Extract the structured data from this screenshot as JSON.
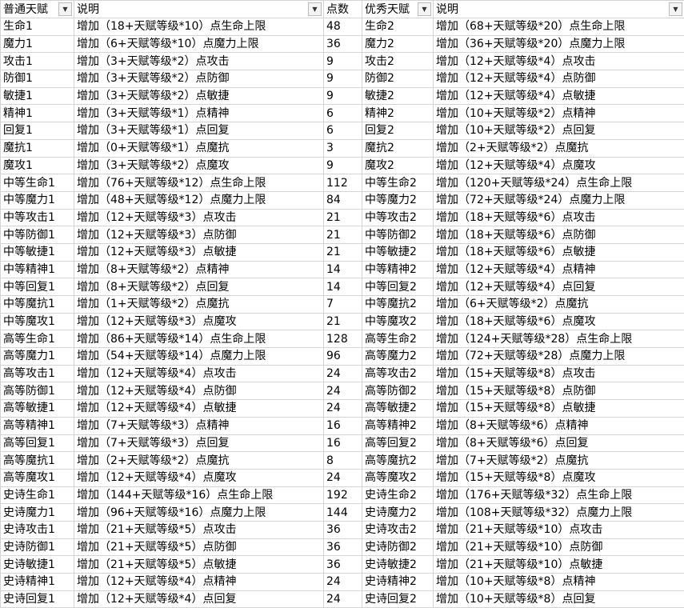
{
  "header": [
    "普通天赋",
    "说明",
    "点数",
    "优秀天赋",
    "说明"
  ],
  "rows": [
    [
      "生命1",
      "增加（18+天赋等级*10）点生命上限",
      48,
      "生命2",
      "增加（68+天赋等级*20）点生命上限"
    ],
    [
      "魔力1",
      "增加（6+天赋等级*10）点魔力上限",
      36,
      "魔力2",
      "增加（36+天赋等级*20）点魔力上限"
    ],
    [
      "攻击1",
      "增加（3+天赋等级*2）点攻击",
      9,
      "攻击2",
      "增加（12+天赋等级*4）点攻击"
    ],
    [
      "防御1",
      "增加（3+天赋等级*2）点防御",
      9,
      "防御2",
      "增加（12+天赋等级*4）点防御"
    ],
    [
      "敏捷1",
      "增加（3+天赋等级*2）点敏捷",
      9,
      "敏捷2",
      "增加（12+天赋等级*4）点敏捷"
    ],
    [
      "精神1",
      "增加（3+天赋等级*1）点精神",
      6,
      "精神2",
      "增加（10+天赋等级*2）点精神"
    ],
    [
      "回复1",
      "增加（3+天赋等级*1）点回复",
      6,
      "回复2",
      "增加（10+天赋等级*2）点回复"
    ],
    [
      "魔抗1",
      "增加（0+天赋等级*1）点魔抗",
      3,
      "魔抗2",
      "增加（2+天赋等级*2）点魔抗"
    ],
    [
      "魔攻1",
      "增加（3+天赋等级*2）点魔攻",
      9,
      "魔攻2",
      "增加（12+天赋等级*4）点魔攻"
    ],
    [
      "中等生命1",
      "增加（76+天赋等级*12）点生命上限",
      112,
      "中等生命2",
      "增加（120+天赋等级*24）点生命上限"
    ],
    [
      "中等魔力1",
      "增加（48+天赋等级*12）点魔力上限",
      84,
      "中等魔力2",
      "增加（72+天赋等级*24）点魔力上限"
    ],
    [
      "中等攻击1",
      "增加（12+天赋等级*3）点攻击",
      21,
      "中等攻击2",
      "增加（18+天赋等级*6）点攻击"
    ],
    [
      "中等防御1",
      "增加（12+天赋等级*3）点防御",
      21,
      "中等防御2",
      "增加（18+天赋等级*6）点防御"
    ],
    [
      "中等敏捷1",
      "增加（12+天赋等级*3）点敏捷",
      21,
      "中等敏捷2",
      "增加（18+天赋等级*6）点敏捷"
    ],
    [
      "中等精神1",
      "增加（8+天赋等级*2）点精神",
      14,
      "中等精神2",
      "增加（12+天赋等级*4）点精神"
    ],
    [
      "中等回复1",
      "增加（8+天赋等级*2）点回复",
      14,
      "中等回复2",
      "增加（12+天赋等级*4）点回复"
    ],
    [
      "中等魔抗1",
      "增加（1+天赋等级*2）点魔抗",
      7,
      "中等魔抗2",
      "增加（6+天赋等级*2）点魔抗"
    ],
    [
      "中等魔攻1",
      "增加（12+天赋等级*3）点魔攻",
      21,
      "中等魔攻2",
      "增加（18+天赋等级*6）点魔攻"
    ],
    [
      "高等生命1",
      "增加（86+天赋等级*14）点生命上限",
      128,
      "高等生命2",
      "增加（124+天赋等级*28）点生命上限"
    ],
    [
      "高等魔力1",
      "增加（54+天赋等级*14）点魔力上限",
      96,
      "高等魔力2",
      "增加（72+天赋等级*28）点魔力上限"
    ],
    [
      "高等攻击1",
      "增加（12+天赋等级*4）点攻击",
      24,
      "高等攻击2",
      "增加（15+天赋等级*8）点攻击"
    ],
    [
      "高等防御1",
      "增加（12+天赋等级*4）点防御",
      24,
      "高等防御2",
      "增加（15+天赋等级*8）点防御"
    ],
    [
      "高等敏捷1",
      "增加（12+天赋等级*4）点敏捷",
      24,
      "高等敏捷2",
      "增加（15+天赋等级*8）点敏捷"
    ],
    [
      "高等精神1",
      "增加（7+天赋等级*3）点精神",
      16,
      "高等精神2",
      "增加（8+天赋等级*6）点精神"
    ],
    [
      "高等回复1",
      "增加（7+天赋等级*3）点回复",
      16,
      "高等回复2",
      "增加（8+天赋等级*6）点回复"
    ],
    [
      "高等魔抗1",
      "增加（2+天赋等级*2）点魔抗",
      8,
      "高等魔抗2",
      "增加（7+天赋等级*2）点魔抗"
    ],
    [
      "高等魔攻1",
      "增加（12+天赋等级*4）点魔攻",
      24,
      "高等魔攻2",
      "增加（15+天赋等级*8）点魔攻"
    ],
    [
      "史诗生命1",
      "增加（144+天赋等级*16）点生命上限",
      192,
      "史诗生命2",
      "增加（176+天赋等级*32）点生命上限"
    ],
    [
      "史诗魔力1",
      "增加（96+天赋等级*16）点魔力上限",
      144,
      "史诗魔力2",
      "增加（108+天赋等级*32）点魔力上限"
    ],
    [
      "史诗攻击1",
      "增加（21+天赋等级*5）点攻击",
      36,
      "史诗攻击2",
      "增加（21+天赋等级*10）点攻击"
    ],
    [
      "史诗防御1",
      "增加（21+天赋等级*5）点防御",
      36,
      "史诗防御2",
      "增加（21+天赋等级*10）点防御"
    ],
    [
      "史诗敏捷1",
      "增加（21+天赋等级*5）点敏捷",
      36,
      "史诗敏捷2",
      "增加（21+天赋等级*10）点敏捷"
    ],
    [
      "史诗精神1",
      "增加（12+天赋等级*4）点精神",
      24,
      "史诗精神2",
      "增加（10+天赋等级*8）点精神"
    ],
    [
      "史诗回复1",
      "增加（12+天赋等级*4）点回复",
      24,
      "史诗回复2",
      "增加（10+天赋等级*8）点回复"
    ]
  ]
}
